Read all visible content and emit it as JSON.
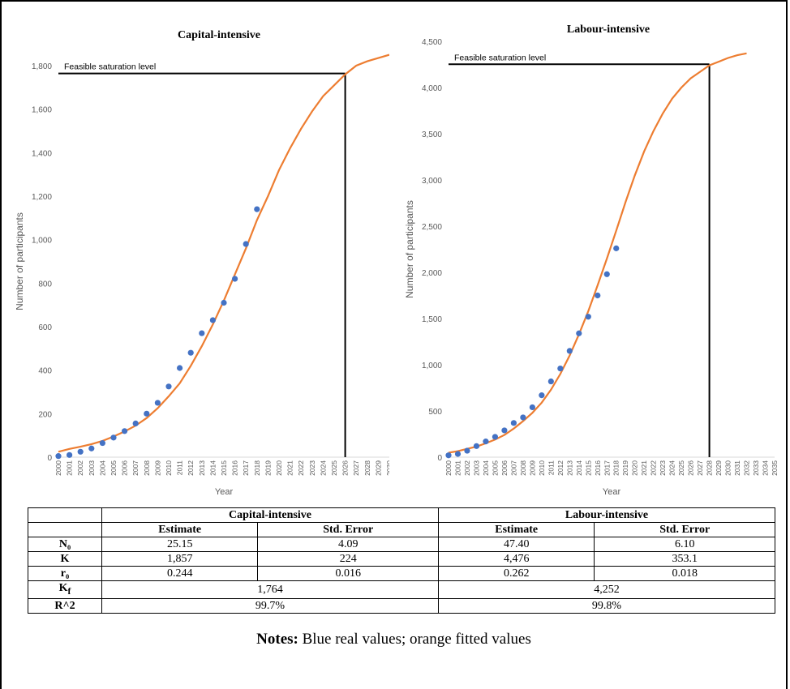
{
  "notes": {
    "label": "Notes:",
    "text": " Blue real values; orange fitted values"
  },
  "table": {
    "group_headers": [
      "Capital-intensive",
      "Labour-intensive"
    ],
    "sub_headers": [
      "Estimate",
      "Std. Error",
      "Estimate",
      "Std. Error"
    ],
    "rows": [
      {
        "param": "N₀",
        "cap_est": "25.15",
        "cap_se": "4.09",
        "lab_est": "47.40",
        "lab_se": "6.10"
      },
      {
        "param": "K",
        "cap_est": "1,857",
        "cap_se": "224",
        "lab_est": "4,476",
        "lab_se": "353.1"
      },
      {
        "param": "r₀",
        "cap_est": "0.244",
        "cap_se": "0.016",
        "lab_est": "0.262",
        "lab_se": "0.018"
      }
    ],
    "merged_rows": [
      {
        "param": "K_f",
        "param_main": "K",
        "param_sub": "f",
        "cap": "1,764",
        "lab": "4,252"
      },
      {
        "param": "R^2",
        "param_main": "R^2",
        "param_sub": "",
        "cap": "99.7%",
        "lab": "99.8%"
      }
    ]
  },
  "chart_data": [
    {
      "type": "scatter",
      "title": "Capital-intensive",
      "xlabel": "Year",
      "ylabel": "Number of participants",
      "x_categories": [
        "2000",
        "2001",
        "2002",
        "2003",
        "2004",
        "2005",
        "2006",
        "2007",
        "2008",
        "2009",
        "2010",
        "2011",
        "2012",
        "2013",
        "2014",
        "2015",
        "2016",
        "2017",
        "2018",
        "2019",
        "2020",
        "2021",
        "2022",
        "2023",
        "2024",
        "2025",
        "2026",
        "2027",
        "2028",
        "2029",
        "2030"
      ],
      "ylim": [
        0,
        1800
      ],
      "yticks": [
        0,
        200,
        400,
        600,
        800,
        1000,
        1200,
        1400,
        1600,
        1800
      ],
      "ytick_labels": [
        "0",
        "200",
        "400",
        "600",
        "800",
        "1,000",
        "1,200",
        "1,400",
        "1,600",
        "1,800"
      ],
      "saturation": {
        "label": "Feasible saturation level",
        "value": 1764,
        "year": 2026
      },
      "series": [
        {
          "kind": "actual",
          "color": "#4472c4",
          "x": [
            2000,
            2001,
            2002,
            2003,
            2004,
            2005,
            2006,
            2007,
            2008,
            2009,
            2010,
            2011,
            2012,
            2013,
            2014,
            2015,
            2016,
            2017,
            2018
          ],
          "y": [
            5,
            10,
            25,
            40,
            65,
            90,
            120,
            155,
            200,
            250,
            325,
            410,
            480,
            570,
            630,
            710,
            820,
            980,
            1140
          ]
        },
        {
          "kind": "fitted",
          "color": "#ed7d31",
          "x": [
            2000,
            2001,
            2002,
            2003,
            2004,
            2005,
            2006,
            2007,
            2008,
            2009,
            2010,
            2011,
            2012,
            2013,
            2014,
            2015,
            2016,
            2017,
            2018,
            2019,
            2020,
            2021,
            2022,
            2023,
            2024,
            2025,
            2026,
            2027,
            2028,
            2029,
            2030
          ],
          "y": [
            25,
            38,
            48,
            60,
            75,
            95,
            118,
            145,
            180,
            225,
            280,
            340,
            420,
            510,
            610,
            720,
            840,
            960,
            1090,
            1200,
            1320,
            1420,
            1510,
            1590,
            1660,
            1710,
            1760,
            1800,
            1820,
            1835,
            1850
          ]
        }
      ]
    },
    {
      "type": "scatter",
      "title": "Labour-intensive",
      "xlabel": "Year",
      "ylabel": "Number of participants",
      "x_categories": [
        "2000",
        "2001",
        "2002",
        "2003",
        "2004",
        "2005",
        "2006",
        "2007",
        "2008",
        "2009",
        "2010",
        "2011",
        "2012",
        "2013",
        "2014",
        "2015",
        "2016",
        "2017",
        "2018",
        "2019",
        "2020",
        "2021",
        "2022",
        "2023",
        "2024",
        "2025",
        "2026",
        "2027",
        "2028",
        "2029",
        "2030",
        "2031",
        "2032",
        "2033",
        "2034",
        "2035"
      ],
      "ylim": [
        0,
        4500
      ],
      "yticks": [
        0,
        500,
        1000,
        1500,
        2000,
        2500,
        3000,
        3500,
        4000,
        4500
      ],
      "ytick_labels": [
        "0",
        "500",
        "1,000",
        "1,500",
        "2,000",
        "2,500",
        "3,000",
        "3,500",
        "4,000",
        "4,500"
      ],
      "saturation": {
        "label": "Feasible saturation level",
        "value": 4252,
        "year": 2028
      },
      "series": [
        {
          "kind": "actual",
          "color": "#4472c4",
          "x": [
            2000,
            2001,
            2002,
            2003,
            2004,
            2005,
            2006,
            2007,
            2008,
            2009,
            2010,
            2011,
            2012,
            2013,
            2014,
            2015,
            2016,
            2017,
            2018
          ],
          "y": [
            20,
            35,
            70,
            120,
            170,
            220,
            290,
            370,
            430,
            540,
            670,
            820,
            960,
            1150,
            1340,
            1520,
            1750,
            1980,
            2260
          ]
        },
        {
          "kind": "fitted",
          "color": "#ed7d31",
          "x": [
            2000,
            2001,
            2002,
            2003,
            2004,
            2005,
            2006,
            2007,
            2008,
            2009,
            2010,
            2011,
            2012,
            2013,
            2014,
            2015,
            2016,
            2017,
            2018,
            2019,
            2020,
            2021,
            2022,
            2023,
            2024,
            2025,
            2026,
            2027,
            2028,
            2029,
            2030,
            2031,
            2032
          ],
          "y": [
            48,
            65,
            90,
            115,
            150,
            190,
            240,
            310,
            390,
            480,
            590,
            730,
            900,
            1100,
            1330,
            1580,
            1860,
            2150,
            2450,
            2760,
            3050,
            3310,
            3530,
            3720,
            3880,
            4000,
            4100,
            4170,
            4240,
            4280,
            4320,
            4350,
            4370
          ]
        }
      ]
    }
  ]
}
